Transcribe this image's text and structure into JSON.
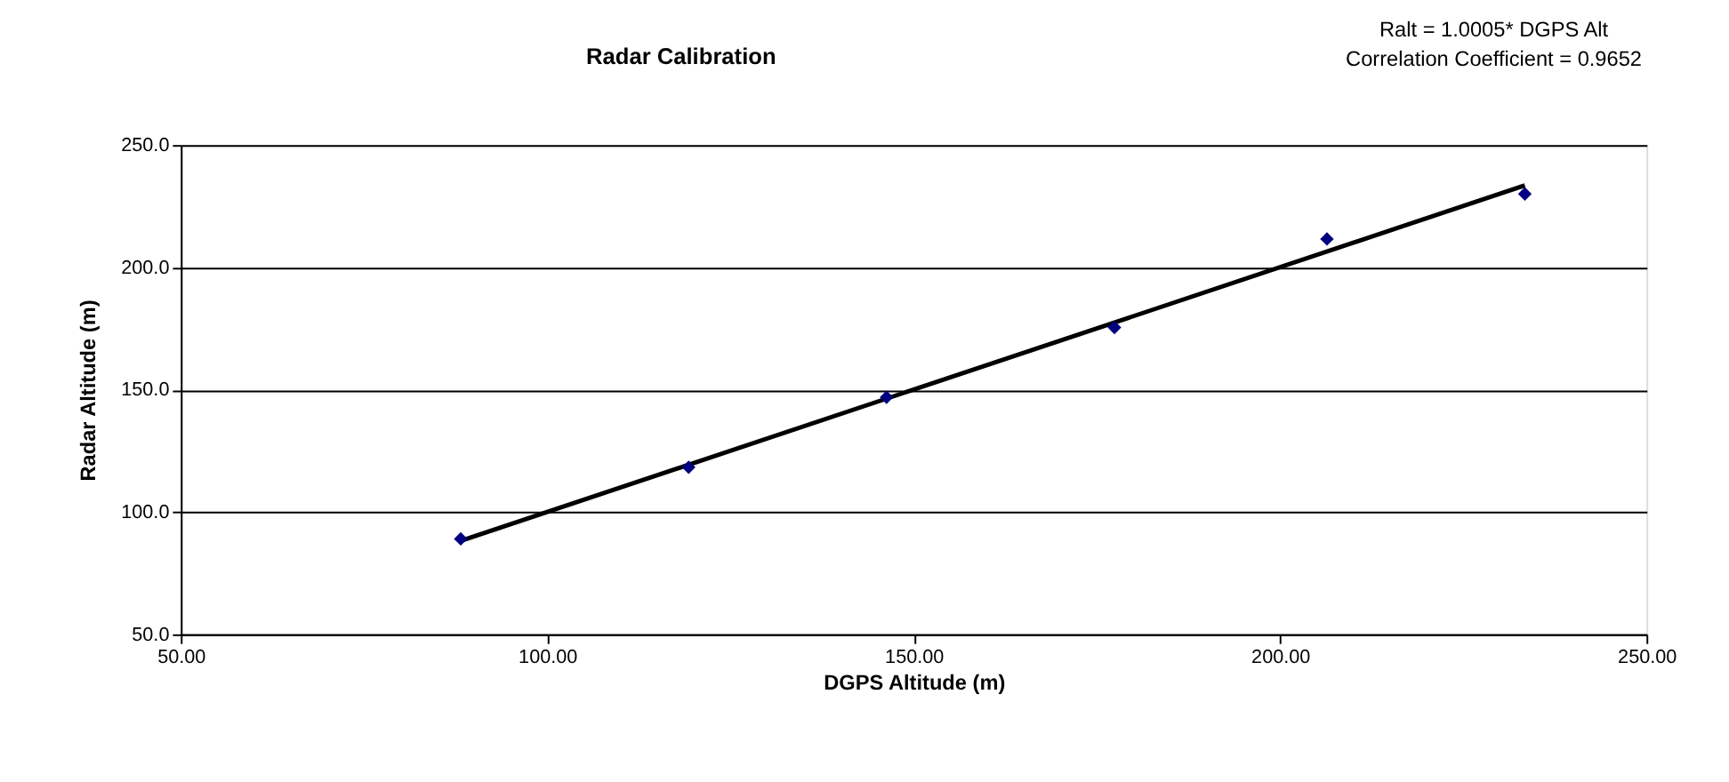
{
  "chart_data": {
    "type": "scatter",
    "title": "Radar Calibration",
    "xlabel": "DGPS Altitude (m)",
    "ylabel": "Radar Altitude (m)",
    "annotations": [
      "Ralt = 1.0005* DGPS Alt",
      "Correlation Coefficient = 0.9652"
    ],
    "series": [
      {
        "type": "scatter",
        "color": "#000080",
        "marker": "diamond",
        "x": [
          88.2,
          119.3,
          146.3,
          177.4,
          206.4,
          233.4
        ],
        "values": [
          89.0,
          118.3,
          146.9,
          175.4,
          211.6,
          230.0
        ]
      },
      {
        "type": "line",
        "color": "#000000",
        "marker": "none",
        "line_style": "solid",
        "x": [
          88.2,
          233.4
        ],
        "values": [
          88.2,
          233.5
        ]
      }
    ],
    "xlim": [
      50,
      250
    ],
    "ylim": [
      50,
      250
    ],
    "xticks": [
      {
        "value": 50,
        "label": "50.00"
      },
      {
        "value": 100,
        "label": "100.00"
      },
      {
        "value": 150,
        "label": "150.00"
      },
      {
        "value": 200,
        "label": "200.00"
      },
      {
        "value": 250,
        "label": "250.00"
      }
    ],
    "yticks": [
      {
        "value": 50,
        "label": "50.0"
      },
      {
        "value": 100,
        "label": "100.0"
      },
      {
        "value": 150,
        "label": "150.0"
      },
      {
        "value": 200,
        "label": "200.0"
      },
      {
        "value": 250,
        "label": "250.0"
      }
    ],
    "grid": "y"
  }
}
